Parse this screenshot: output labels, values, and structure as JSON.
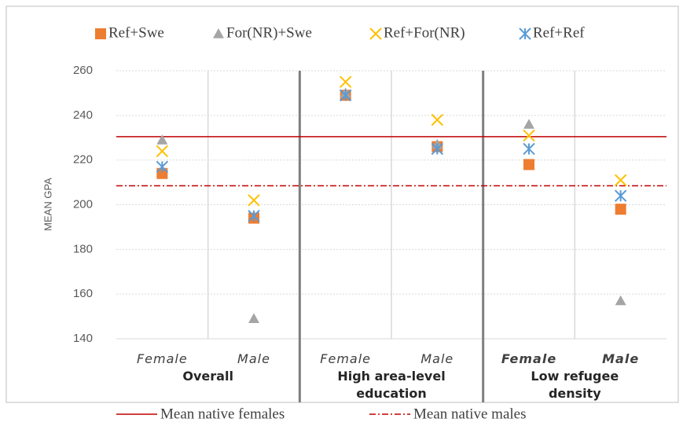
{
  "chart_data": {
    "type": "scatter",
    "categories": [
      "Female",
      "Male",
      "Female",
      "Male",
      "Female",
      "Male"
    ],
    "groups": [
      "Overall",
      "High area-level education",
      "Low refugee density"
    ],
    "ylabel": "MEAN GPA",
    "ylim": [
      140,
      260
    ],
    "yticks": [
      140,
      160,
      180,
      200,
      220,
      240,
      260
    ],
    "grid": true,
    "series": [
      {
        "name": "Ref+Swe",
        "color": "#ed7d31",
        "marker": "square",
        "values": [
          214,
          194,
          249,
          226,
          218,
          198
        ]
      },
      {
        "name": "For(NR)+Swe",
        "color": "#a5a5a5",
        "marker": "triangle",
        "values": [
          229,
          149,
          250,
          227,
          236,
          157
        ]
      },
      {
        "name": "Ref+For(NR)",
        "color": "#ffc000",
        "marker": "x",
        "values": [
          224,
          202,
          255,
          238,
          231,
          211
        ]
      },
      {
        "name": "Ref+Ref",
        "color": "#5b9bd5",
        "marker": "asterisk",
        "values": [
          217,
          195,
          249,
          225,
          225,
          204
        ]
      }
    ],
    "reference_lines": [
      {
        "name": "Mean native females",
        "value": 230.5,
        "color": "#c00000",
        "dash": "solid"
      },
      {
        "name": "Mean native males",
        "value": 208.5,
        "color": "#c00000",
        "dash": "dashdot"
      }
    ]
  }
}
